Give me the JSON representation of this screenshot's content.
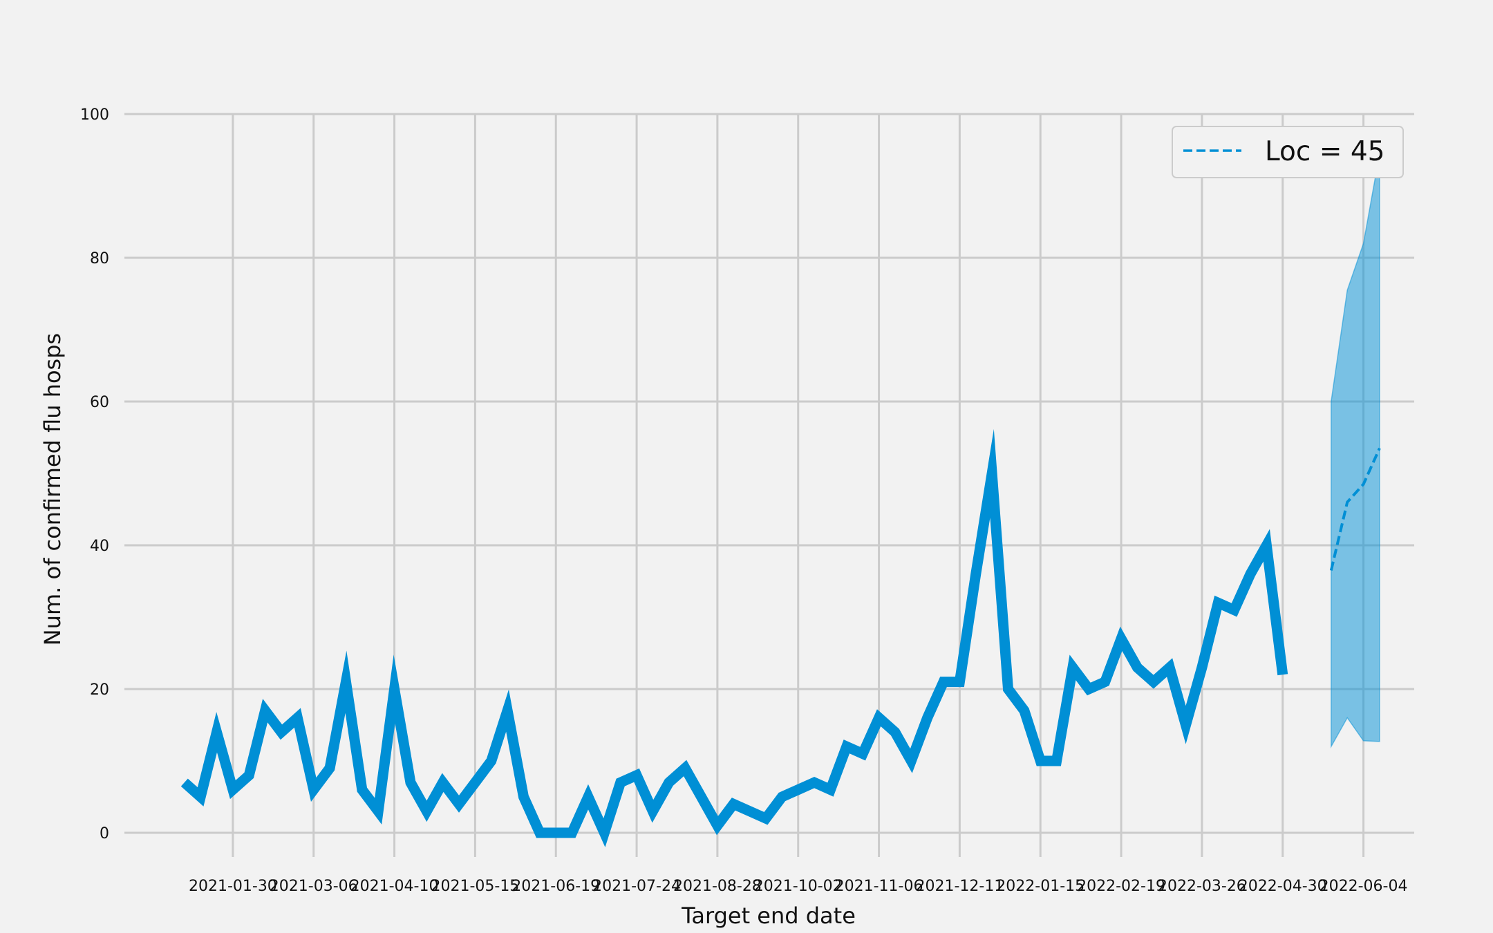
{
  "chart_data": {
    "type": "line",
    "title": "",
    "xlabel": "Target end date",
    "ylabel": "Num. of confirmed flu hosps",
    "ylim": [
      0,
      100
    ],
    "yticks": [
      0,
      20,
      40,
      60,
      80,
      100
    ],
    "xlim": [
      "2020-12-14",
      "2022-06-26"
    ],
    "xticks": [
      "2021-01-30",
      "2021-03-06",
      "2021-04-10",
      "2021-05-15",
      "2021-06-19",
      "2021-07-24",
      "2021-08-28",
      "2021-10-02",
      "2021-11-06",
      "2021-12-11",
      "2022-01-15",
      "2022-02-19",
      "2022-03-26",
      "2022-04-30",
      "2022-06-04"
    ],
    "grid": true,
    "legend_position": "top-right",
    "colors": {
      "observed": "#008fd5",
      "forecast": "#008fd5",
      "band": "#008fd5",
      "grid": "#cbcbcb",
      "background": "#f2f2f2"
    },
    "observed": {
      "x": [
        "2021-01-09",
        "2021-01-16",
        "2021-01-23",
        "2021-01-30",
        "2021-02-06",
        "2021-02-13",
        "2021-02-20",
        "2021-02-27",
        "2021-03-06",
        "2021-03-13",
        "2021-03-20",
        "2021-03-27",
        "2021-04-03",
        "2021-04-10",
        "2021-04-17",
        "2021-04-24",
        "2021-05-01",
        "2021-05-08",
        "2021-05-15",
        "2021-05-22",
        "2021-05-29",
        "2021-06-05",
        "2021-06-12",
        "2021-06-19",
        "2021-06-26",
        "2021-07-03",
        "2021-07-10",
        "2021-07-17",
        "2021-07-24",
        "2021-07-31",
        "2021-08-07",
        "2021-08-14",
        "2021-08-21",
        "2021-08-28",
        "2021-09-04",
        "2021-09-11",
        "2021-09-18",
        "2021-09-25",
        "2021-10-02",
        "2021-10-09",
        "2021-10-16",
        "2021-10-23",
        "2021-10-30",
        "2021-11-06",
        "2021-11-13",
        "2021-11-20",
        "2021-11-27",
        "2021-12-04",
        "2021-12-11",
        "2021-12-18",
        "2021-12-25",
        "2022-01-01",
        "2022-01-08",
        "2022-01-15",
        "2022-01-22",
        "2022-01-29",
        "2022-02-05",
        "2022-02-12",
        "2022-02-19",
        "2022-02-26",
        "2022-03-05",
        "2022-03-12",
        "2022-03-19",
        "2022-03-26",
        "2022-04-02",
        "2022-04-09",
        "2022-04-16",
        "2022-04-23",
        "2022-04-30",
        "2022-05-07",
        "2022-05-14"
      ],
      "y": [
        7,
        5,
        14,
        6,
        8,
        17,
        14,
        16,
        6,
        9,
        21,
        6,
        3,
        20,
        7,
        3,
        7,
        4,
        7,
        10,
        17,
        5,
        0,
        0,
        0,
        5,
        0,
        7,
        8,
        3,
        7,
        9,
        5,
        1,
        4,
        3,
        2,
        5,
        6,
        7,
        6,
        12,
        11,
        16,
        14,
        10,
        16,
        21,
        21,
        36,
        50,
        20,
        17,
        10,
        10,
        23,
        20,
        21,
        27,
        23,
        21,
        23,
        15,
        23,
        32,
        31,
        36,
        40,
        22,
        null,
        null
      ]
    },
    "series": [
      {
        "name": "Loc = 45",
        "style": "dashed",
        "x": [
          "2022-05-21",
          "2022-05-28",
          "2022-06-04",
          "2022-06-11"
        ],
        "y": [
          36.5,
          46,
          48.5,
          53.5
        ],
        "lower": [
          12,
          16,
          12.8,
          12.7
        ],
        "upper": [
          60,
          75.5,
          82,
          94.5
        ]
      }
    ]
  }
}
